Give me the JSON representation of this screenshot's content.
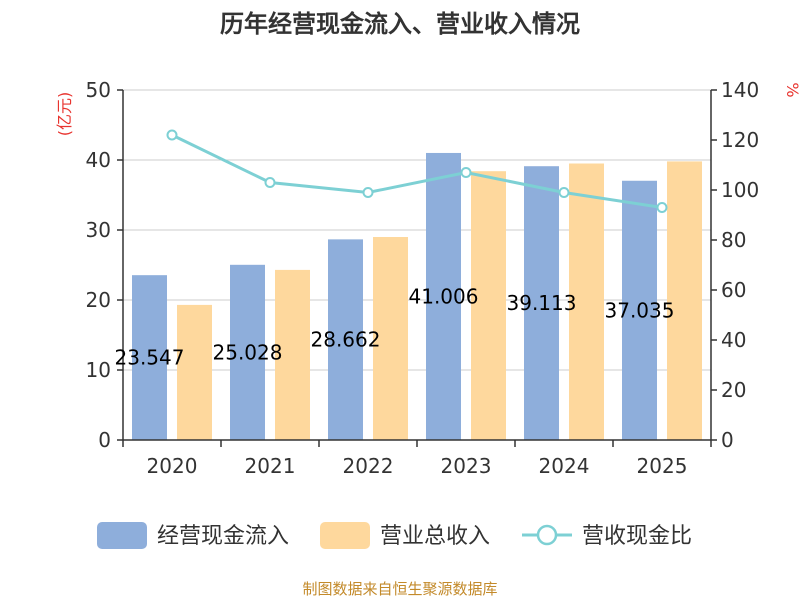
{
  "chart_data": {
    "type": "bar+line",
    "title": "历年经营现金流入、营业收入情况",
    "categories": [
      "2020",
      "2021",
      "2022",
      "2023",
      "2024",
      "2025"
    ],
    "series": [
      {
        "name": "经营现金流入",
        "type": "bar",
        "axis": "left",
        "color": "#8eaedb",
        "values": [
          23.547,
          25.028,
          28.662,
          41.006,
          39.113,
          37.035
        ],
        "labels": [
          "23.547",
          "25.028",
          "28.662",
          "41.006",
          "39.113",
          "37.035"
        ]
      },
      {
        "name": "营业总收入",
        "type": "bar",
        "axis": "left",
        "color": "#fed89d",
        "values": [
          19.3,
          24.3,
          29.0,
          38.4,
          39.5,
          39.8
        ]
      },
      {
        "name": "营收现金比",
        "type": "line",
        "axis": "right",
        "color": "#7dd0d4",
        "values": [
          122,
          103,
          99,
          107,
          99,
          93
        ]
      }
    ],
    "left_axis": {
      "label": "(亿元)",
      "min": 0,
      "max": 50,
      "ticks": [
        0,
        10,
        20,
        30,
        40,
        50
      ]
    },
    "right_axis": {
      "label": "%",
      "min": 0,
      "max": 140,
      "ticks": [
        0,
        20,
        40,
        60,
        80,
        100,
        120,
        140
      ]
    },
    "grid": true,
    "legend_position": "bottom",
    "source": "制图数据来自恒生聚源数据库",
    "colors": {
      "label_accent": "#e8342f",
      "source": "#c38a2a",
      "axis": "#333333",
      "grid": "#cccccc"
    }
  }
}
